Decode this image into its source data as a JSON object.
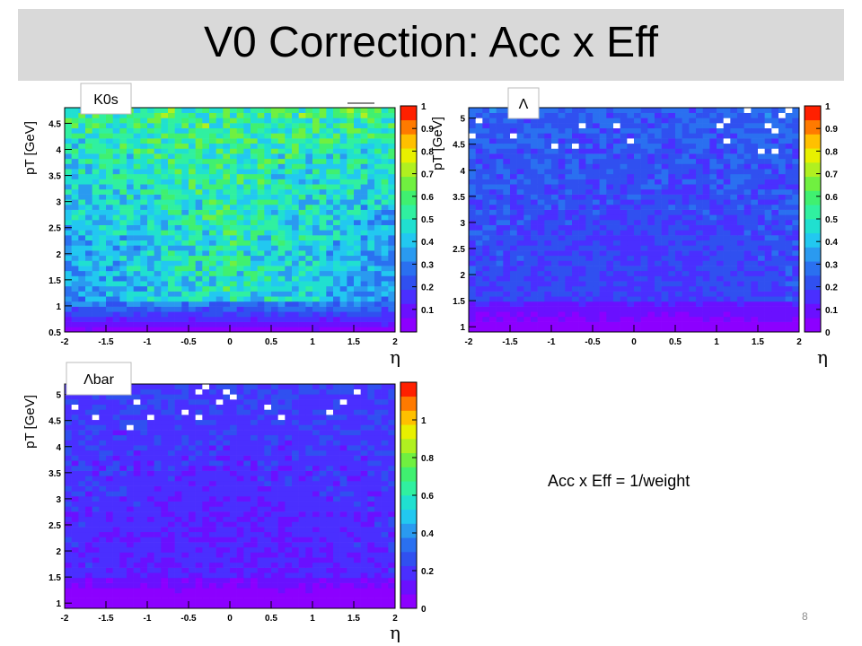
{
  "slide": {
    "title": "V0 Correction: Acc x Eff",
    "note": "Acc x Eff = 1/weight",
    "page_number": "8"
  },
  "colors": {
    "title_bar": "#d9d9d9",
    "palette": [
      "#8c00ff",
      "#6a10ff",
      "#4a2fff",
      "#3050f0",
      "#2a70f0",
      "#2a9af0",
      "#22c8f0",
      "#20e0d0",
      "#30f0a0",
      "#40f070",
      "#70f040",
      "#b0f020",
      "#e8f000",
      "#ffc000",
      "#ff7a00",
      "#ff2000"
    ]
  },
  "chart_data": [
    {
      "type": "heatmap",
      "tag": "K0s",
      "ylabel": "pT [GeV]",
      "xlabel": "η",
      "x_ticks": [
        "-2",
        "-1.5",
        "-1",
        "-0.5",
        "0",
        "0.5",
        "1",
        "1.5",
        "2"
      ],
      "y_ticks": [
        "0.5",
        "1",
        "1.5",
        "2",
        "2.5",
        "3",
        "3.5",
        "4",
        "4.5"
      ],
      "z_ticks": [
        "0.1",
        "0.2",
        "0.3",
        "0.4",
        "0.5",
        "0.6",
        "0.7",
        "0.8",
        "0.9",
        "1"
      ],
      "xlim": [
        -2,
        2
      ],
      "ylim": [
        0.5,
        4.8
      ],
      "zlim": [
        0,
        1
      ],
      "pattern": {
        "low_pt_value": 0.05,
        "mid_eta_value": 0.5,
        "edge_eta_value": 0.3,
        "high_pt_value": 0.55
      }
    },
    {
      "type": "heatmap",
      "tag": "Λ",
      "ylabel": "pT [GeV]",
      "xlabel": "η",
      "x_ticks": [
        "-2",
        "-1.5",
        "-1",
        "-0.5",
        "0",
        "0.5",
        "1",
        "1.5",
        "2"
      ],
      "y_ticks": [
        "1",
        "1.5",
        "2",
        "2.5",
        "3",
        "3.5",
        "4",
        "4.5",
        "5"
      ],
      "z_ticks": [
        "0",
        "0.1",
        "0.2",
        "0.3",
        "0.4",
        "0.5",
        "0.6",
        "0.7",
        "0.8",
        "0.9",
        "1"
      ],
      "xlim": [
        -2,
        2
      ],
      "ylim": [
        0.9,
        5.2
      ],
      "zlim": [
        0,
        1
      ],
      "pattern": {
        "low_pt_value": 0.03,
        "mid_eta_value": 0.16,
        "edge_eta_value": 0.2,
        "high_pt_value": 0.25
      }
    },
    {
      "type": "heatmap",
      "tag": "Λbar",
      "ylabel": "pT [GeV]",
      "xlabel": "η",
      "x_ticks": [
        "-2",
        "-1.5",
        "-1",
        "-0.5",
        "0",
        "0.5",
        "1",
        "1.5",
        "2"
      ],
      "y_ticks": [
        "1",
        "1.5",
        "2",
        "2.5",
        "3",
        "3.5",
        "4",
        "4.5",
        "5"
      ],
      "z_ticks": [
        "0",
        "0.2",
        "0.4",
        "0.6",
        "0.8",
        "1"
      ],
      "xlim": [
        -2,
        2
      ],
      "ylim": [
        0.9,
        5.2
      ],
      "zlim": [
        0,
        1.2
      ],
      "pattern": {
        "low_pt_value": 0.02,
        "mid_eta_value": 0.14,
        "edge_eta_value": 0.18,
        "high_pt_value": 0.22
      }
    }
  ]
}
